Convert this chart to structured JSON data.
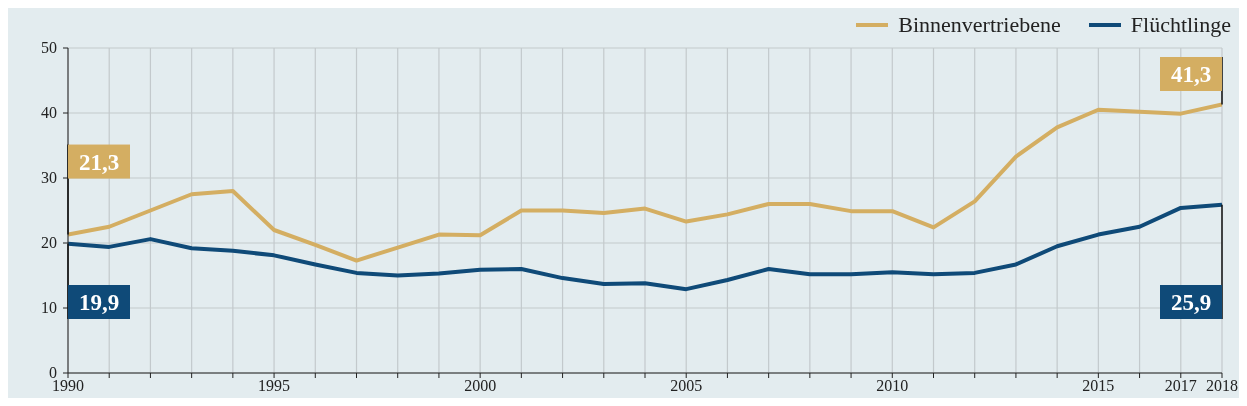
{
  "chart_data": {
    "type": "line",
    "x": [
      1990,
      1991,
      1992,
      1993,
      1994,
      1995,
      1996,
      1997,
      1998,
      1999,
      2000,
      2001,
      2002,
      2003,
      2004,
      2005,
      2006,
      2007,
      2008,
      2009,
      2010,
      2011,
      2012,
      2013,
      2014,
      2015,
      2016,
      2017,
      2018
    ],
    "series": [
      {
        "name": "Binnenvertriebene",
        "color": "#d4ae62",
        "values": [
          21.3,
          22.5,
          25.0,
          27.5,
          28.0,
          22.0,
          19.7,
          17.3,
          19.3,
          21.3,
          21.2,
          25.0,
          25.0,
          24.6,
          25.3,
          23.3,
          24.4,
          26.0,
          26.0,
          24.9,
          24.9,
          22.4,
          26.4,
          33.3,
          37.8,
          40.5,
          40.2,
          39.9,
          41.3
        ],
        "value_labels": [
          "21,3",
          null,
          null,
          null,
          null,
          null,
          null,
          null,
          null,
          null,
          null,
          null,
          null,
          null,
          null,
          null,
          null,
          null,
          null,
          null,
          null,
          null,
          null,
          null,
          null,
          null,
          null,
          null,
          "41,3"
        ]
      },
      {
        "name": "Flüchtlinge",
        "color": "#0f4a78",
        "values": [
          19.9,
          19.4,
          20.6,
          19.2,
          18.8,
          18.1,
          16.7,
          15.4,
          15.0,
          15.3,
          15.9,
          16.0,
          14.6,
          13.7,
          13.8,
          12.9,
          14.3,
          16.0,
          15.2,
          15.2,
          15.5,
          15.2,
          15.4,
          16.7,
          19.5,
          21.3,
          22.5,
          25.4,
          25.9
        ],
        "value_labels": [
          "19,9",
          null,
          null,
          null,
          null,
          null,
          null,
          null,
          null,
          null,
          null,
          null,
          null,
          null,
          null,
          null,
          null,
          null,
          null,
          null,
          null,
          null,
          null,
          null,
          null,
          null,
          null,
          null,
          "25,9"
        ]
      }
    ],
    "xlim": [
      1990,
      2018
    ],
    "xticks": [
      1990,
      {
        "value": 1991,
        "label": null
      },
      {
        "value": 1992,
        "label": null
      },
      {
        "value": 1993,
        "label": null
      },
      {
        "value": 1994,
        "label": null
      },
      1995,
      {
        "value": 1996,
        "label": null
      },
      {
        "value": 1997,
        "label": null
      },
      {
        "value": 1998,
        "label": null
      },
      {
        "value": 1999,
        "label": null
      },
      2000,
      {
        "value": 2001,
        "label": null
      },
      {
        "value": 2002,
        "label": null
      },
      {
        "value": 2003,
        "label": null
      },
      {
        "value": 2004,
        "label": null
      },
      2005,
      {
        "value": 2006,
        "label": null
      },
      {
        "value": 2007,
        "label": null
      },
      {
        "value": 2008,
        "label": null
      },
      {
        "value": 2009,
        "label": null
      },
      2010,
      {
        "value": 2011,
        "label": null
      },
      {
        "value": 2012,
        "label": null
      },
      {
        "value": 2013,
        "label": null
      },
      {
        "value": 2014,
        "label": null
      },
      2015,
      {
        "value": 2016,
        "label": null
      },
      2017,
      2018
    ],
    "ylim": [
      0,
      50
    ],
    "yticks": [
      0,
      10,
      20,
      30,
      40,
      50
    ],
    "grid": true,
    "legend": "top right",
    "marker": "none",
    "line_style": "solid"
  }
}
